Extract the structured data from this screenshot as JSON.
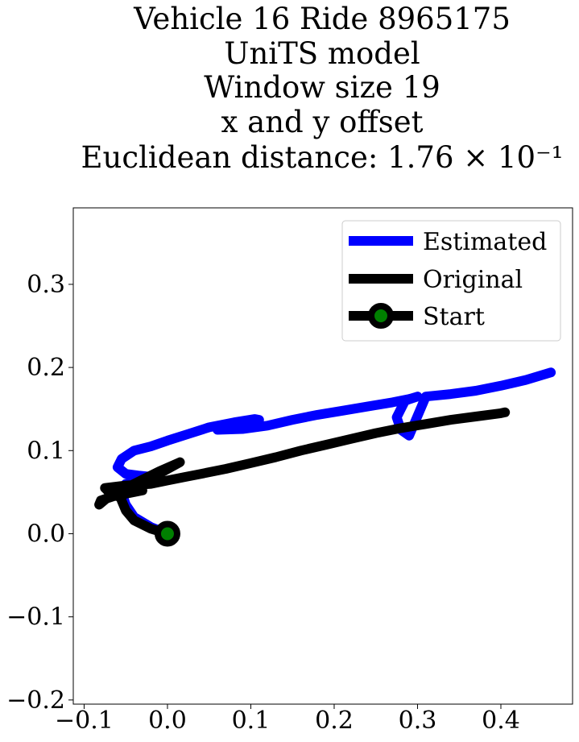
{
  "chart_data": {
    "type": "line",
    "title_lines": [
      "Vehicle 16 Ride 8965175",
      "UniTS model",
      "Window size 19",
      "x and y offset",
      "Euclidean distance: 1.76 × 10⁻¹"
    ],
    "xlabel": "",
    "ylabel": "",
    "xlim": [
      -0.113,
      0.486
    ],
    "ylim": [
      -0.205,
      0.392
    ],
    "xticks": [
      -0.1,
      0.0,
      0.1,
      0.2,
      0.3,
      0.4
    ],
    "xtick_labels": [
      "−0.1",
      "0.0",
      "0.1",
      "0.2",
      "0.3",
      "0.4"
    ],
    "yticks": [
      -0.2,
      -0.1,
      0.0,
      0.1,
      0.2,
      0.3
    ],
    "ytick_labels": [
      "−0.2",
      "−0.1",
      "0.0",
      "0.1",
      "0.2",
      "0.3"
    ],
    "grid": false,
    "legend_position": "top-right",
    "series": [
      {
        "name": "Estimated",
        "color": "#0000ff",
        "x": [
          0.0,
          -0.02,
          -0.04,
          -0.05,
          -0.055,
          -0.05,
          -0.03,
          -0.015,
          -0.035,
          -0.05,
          -0.06,
          -0.055,
          -0.04,
          -0.02,
          0.0,
          0.025,
          0.05,
          0.08,
          0.105,
          0.11,
          0.09,
          0.06,
          0.06,
          0.09,
          0.12,
          0.15,
          0.18,
          0.21,
          0.24,
          0.27,
          0.29,
          0.3,
          0.285,
          0.275,
          0.28,
          0.29,
          0.31,
          0.34,
          0.37,
          0.4,
          0.43,
          0.46
        ],
        "y": [
          0.0,
          0.008,
          0.02,
          0.035,
          0.05,
          0.06,
          0.065,
          0.068,
          0.07,
          0.072,
          0.08,
          0.09,
          0.1,
          0.105,
          0.112,
          0.12,
          0.128,
          0.134,
          0.138,
          0.137,
          0.133,
          0.128,
          0.125,
          0.126,
          0.13,
          0.137,
          0.143,
          0.148,
          0.153,
          0.158,
          0.162,
          0.165,
          0.16,
          0.14,
          0.125,
          0.118,
          0.165,
          0.168,
          0.172,
          0.178,
          0.185,
          0.194
        ]
      },
      {
        "name": "Original",
        "color": "#000000",
        "x": [
          0.0,
          -0.02,
          -0.04,
          -0.05,
          -0.055,
          -0.055,
          -0.045,
          -0.03,
          -0.065,
          -0.08,
          -0.082,
          -0.07,
          -0.05,
          -0.03,
          -0.01,
          0.015,
          -0.005,
          -0.03,
          -0.05,
          -0.06,
          -0.07,
          -0.075,
          -0.05,
          -0.02,
          0.0,
          0.02,
          0.04,
          0.07,
          0.1,
          0.13,
          0.16,
          0.19,
          0.22,
          0.25,
          0.28,
          0.31,
          0.34,
          0.37,
          0.4,
          0.405
        ],
        "y": [
          0.0,
          0.006,
          0.016,
          0.028,
          0.04,
          0.05,
          0.055,
          0.052,
          0.045,
          0.04,
          0.035,
          0.045,
          0.055,
          0.065,
          0.075,
          0.086,
          0.075,
          0.062,
          0.05,
          0.045,
          0.05,
          0.055,
          0.058,
          0.06,
          0.064,
          0.068,
          0.072,
          0.078,
          0.085,
          0.092,
          0.1,
          0.107,
          0.114,
          0.121,
          0.127,
          0.132,
          0.137,
          0.141,
          0.145,
          0.146
        ]
      }
    ],
    "start_marker": {
      "name": "Start",
      "x": 0.0,
      "y": 0.0,
      "edge_color": "#000000",
      "face_color": "#008000"
    }
  }
}
